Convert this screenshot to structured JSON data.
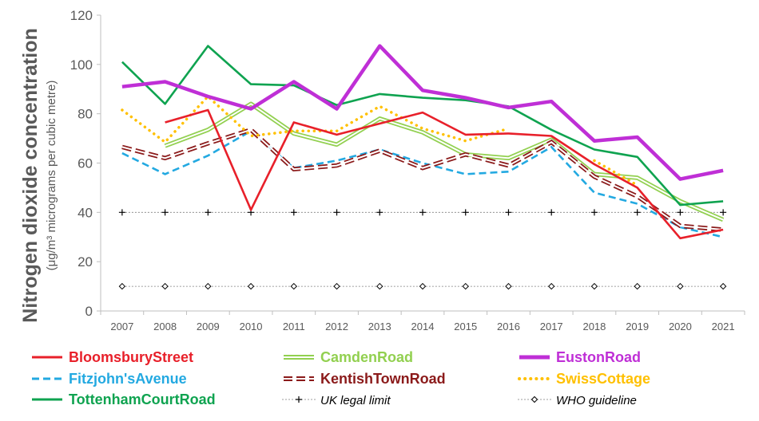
{
  "chart_data": {
    "type": "line",
    "title": "",
    "ylabel_main": "Nitrogen dioxide concentration",
    "ylabel_sub": "(μg/m³ micrograms per cubic metre)",
    "xlabel": "",
    "ylim": [
      0,
      120
    ],
    "yticks": [
      "0",
      "20",
      "40",
      "60",
      "80",
      "100",
      "120"
    ],
    "x": [
      "2007",
      "2008",
      "2009",
      "2010",
      "2011",
      "2012",
      "2013",
      "2014",
      "2015",
      "2016",
      "2017",
      "2018",
      "2019",
      "2020",
      "2021"
    ],
    "grid": false,
    "legend_position": "bottom",
    "series": [
      {
        "name": "BloomsburyStreet",
        "color": "#e8202a",
        "style": "solid",
        "values": [
          null,
          76.5,
          81.5,
          41,
          76.5,
          71.5,
          76,
          80.5,
          71.5,
          72,
          71,
          59.5,
          50,
          29.5,
          33
        ]
      },
      {
        "name": "CamdenRoad",
        "color": "#92d050",
        "style": "double",
        "values": [
          null,
          67,
          73.5,
          84,
          72,
          67.5,
          78,
          72.5,
          63.5,
          62,
          69.5,
          55.5,
          54,
          44.5,
          37
        ]
      },
      {
        "name": "EustonRoad",
        "color": "#bf2fd6",
        "style": "thick",
        "values": [
          91,
          93,
          87,
          82,
          93,
          82,
          107.5,
          89.5,
          86.5,
          82.5,
          85,
          69,
          70.5,
          53.5,
          57
        ]
      },
      {
        "name": "Fitzjohn'sAvenue",
        "color": "#23a9e1",
        "style": "dashed",
        "values": [
          64,
          55.5,
          63,
          73,
          58,
          61,
          65.5,
          60,
          55.5,
          56.5,
          66.5,
          48,
          43.5,
          34,
          30
        ]
      },
      {
        "name": "KentishTownRoad",
        "color": "#8b1a1a",
        "style": "double-dashed",
        "values": [
          66.5,
          62,
          68,
          73.5,
          57.5,
          59,
          65,
          58,
          63.5,
          59,
          68.5,
          54.5,
          46.5,
          34.5,
          33
        ]
      },
      {
        "name": "SwissCottage",
        "color": "#ffc000",
        "style": "dotted",
        "values": [
          81.5,
          68.5,
          87,
          71,
          73,
          73,
          83,
          74,
          69,
          74,
          null,
          61,
          51,
          null,
          null
        ]
      },
      {
        "name": "TottenhamCourtRoad",
        "color": "#0fa350",
        "style": "solid",
        "values": [
          101,
          84,
          107.5,
          92,
          91.5,
          83.5,
          88,
          86.5,
          85.5,
          83,
          73.5,
          65.5,
          62.5,
          43,
          44.5
        ]
      },
      {
        "name": "UK legal limit",
        "color": "#000000",
        "style": "plus-marker",
        "values": [
          40,
          40,
          40,
          40,
          40,
          40,
          40,
          40,
          40,
          40,
          40,
          40,
          40,
          40,
          40
        ]
      },
      {
        "name": "WHO guideline",
        "color": "#000000",
        "style": "diamond-marker",
        "values": [
          10,
          10,
          10,
          10,
          10,
          10,
          10,
          10,
          10,
          10,
          10,
          10,
          10,
          10,
          10
        ]
      }
    ]
  }
}
